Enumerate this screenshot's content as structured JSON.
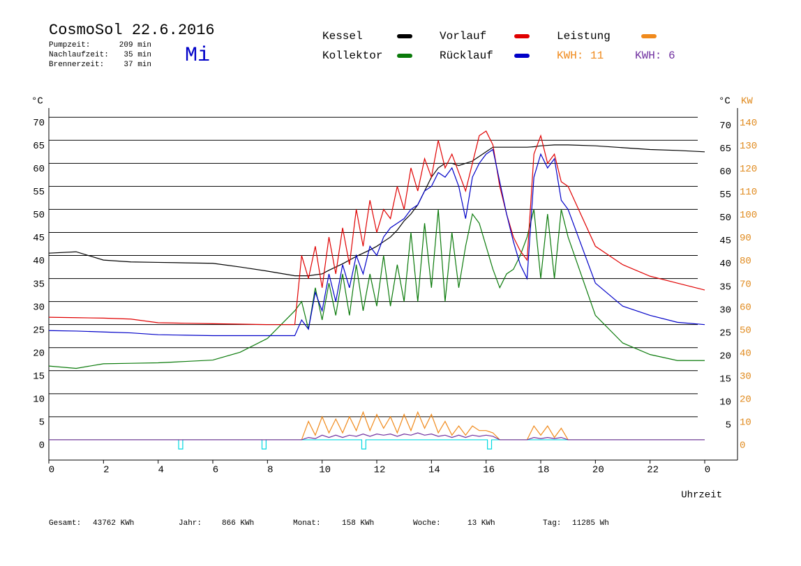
{
  "chart_data": {
    "type": "line",
    "title": "CosmoSol 22.6.2016",
    "weekday": "Mi",
    "stats": [
      {
        "label": "Pumpzeit:",
        "value": "209 min"
      },
      {
        "label": "Nachlaufzeit:",
        "value": "35 min"
      },
      {
        "label": "Brennerzeit:",
        "value": "37 min"
      }
    ],
    "ylabel": "°C",
    "y2label_left": "°C",
    "y2label": "KW",
    "xlabel": "Uhrzeit",
    "xlim": [
      0,
      25.2
    ],
    "xticks": [
      0,
      2,
      4,
      6,
      8,
      10,
      12,
      14,
      16,
      18,
      20,
      22,
      {
        "value": 24,
        "label": "0"
      }
    ],
    "ylim": [
      -4.4,
      72
    ],
    "yticks": [
      0,
      5,
      10,
      15,
      20,
      25,
      30,
      35,
      40,
      45,
      50,
      55,
      60,
      65,
      70
    ],
    "right_yticks": [
      5,
      10,
      15,
      20,
      25,
      30,
      35,
      40,
      45,
      50,
      55,
      60,
      65,
      70
    ],
    "y2lim": [
      -8.8,
      144
    ],
    "y2ticks": [
      0,
      10,
      20,
      30,
      40,
      50,
      60,
      70,
      80,
      90,
      100,
      110,
      120,
      130,
      140
    ],
    "y2color": "#e08a1e",
    "grid": true,
    "x": [
      0,
      1,
      2,
      3,
      4,
      5,
      6,
      7,
      8,
      9,
      9.25,
      9.5,
      9.75,
      10,
      10.25,
      10.5,
      10.75,
      11,
      11.25,
      11.5,
      11.75,
      12,
      12.25,
      12.5,
      12.75,
      13,
      13.25,
      13.5,
      13.75,
      14,
      14.25,
      14.5,
      14.75,
      15,
      15.25,
      15.5,
      15.75,
      16,
      16.25,
      16.5,
      16.75,
      17,
      17.25,
      17.5,
      17.75,
      18,
      18.25,
      18.5,
      18.75,
      19,
      20,
      21,
      22,
      23,
      24
    ],
    "series": [
      {
        "name": "Kessel",
        "color": "#000000",
        "values": [
          40.5,
          40.8,
          39.0,
          38.6,
          38.5,
          38.4,
          38.3,
          37.5,
          36.6,
          35.6,
          35.6,
          35.6,
          35.8,
          36,
          36.8,
          37.5,
          38.2,
          39,
          39.8,
          40.5,
          41.2,
          42,
          43,
          44,
          45.5,
          47.5,
          49,
          51,
          54,
          57,
          59,
          60,
          60,
          59.5,
          60,
          60.5,
          61.5,
          62.5,
          63.5,
          63.5,
          63.5,
          63.5,
          63.5,
          63.5,
          63.6,
          63.8,
          63.9,
          64,
          64,
          64,
          63.8,
          63.4,
          63,
          62.8,
          62.5
        ]
      },
      {
        "name": "Kollektor",
        "color": "#0a7a0a",
        "values": [
          16,
          15.5,
          16.5,
          16.6,
          16.7,
          17,
          17.3,
          19,
          22,
          28,
          30,
          24,
          33,
          26,
          34,
          27,
          36,
          27,
          38,
          28,
          36,
          29,
          40,
          29,
          38,
          30,
          45,
          30,
          47,
          33,
          50,
          30,
          45,
          33,
          42,
          49,
          47,
          42,
          37,
          33,
          36,
          37,
          40,
          44,
          50,
          35,
          49,
          35,
          50,
          44,
          27,
          21,
          18.5,
          17.2,
          17.2
        ]
      },
      {
        "name": "Vorlauf",
        "color": "#e00000",
        "values": [
          26.6,
          26.5,
          26.4,
          26.2,
          25.4,
          25.3,
          25.2,
          25.1,
          25.0,
          25.0,
          40,
          35,
          42,
          33,
          44,
          36,
          46,
          38,
          50,
          42,
          52,
          45,
          50,
          48,
          55,
          50,
          59,
          54,
          61,
          57,
          65,
          59,
          62,
          58,
          54,
          60,
          66,
          67,
          64,
          55,
          49,
          44,
          41,
          39,
          62,
          66,
          60,
          62,
          56,
          55,
          42,
          38,
          35.5,
          34,
          32.5
        ]
      },
      {
        "name": "Rücklauf",
        "color": "#0000c8",
        "values": [
          23.7,
          23.6,
          23.4,
          23.2,
          22.8,
          22.7,
          22.6,
          22.6,
          22.6,
          22.6,
          26,
          24,
          32,
          28,
          36,
          30,
          38,
          33,
          40,
          36,
          42,
          40,
          44,
          46,
          47,
          48,
          50,
          51,
          54,
          55,
          58,
          57,
          59,
          55,
          48,
          57,
          60,
          62,
          63,
          56,
          49,
          43,
          38,
          35,
          57,
          62,
          59,
          61,
          52,
          50,
          34,
          29,
          27,
          25.5,
          25
        ]
      },
      {
        "name": "Leistung",
        "color": "#f08a1c",
        "axis": "y2",
        "values": [
          0,
          0,
          0,
          0,
          0,
          0,
          0,
          0,
          0,
          0,
          0,
          8,
          2,
          10,
          3,
          9,
          3,
          10,
          4,
          12,
          4,
          11,
          5,
          10,
          3,
          11,
          4,
          12,
          5,
          11,
          3,
          8,
          2,
          6,
          2,
          6,
          4,
          4,
          3,
          0,
          0,
          0,
          0,
          0,
          6,
          2,
          6,
          1,
          5,
          0,
          0,
          0,
          0,
          0,
          0
        ]
      },
      {
        "color": "#7030a0",
        "axis": "y2",
        "values": [
          0,
          0,
          0,
          0,
          0,
          0,
          0,
          0,
          0,
          0,
          0,
          1,
          0.5,
          2,
          1,
          2,
          1,
          2,
          1.5,
          2.5,
          1.5,
          2.5,
          2,
          2.5,
          1.5,
          2.5,
          2,
          3,
          2,
          2.5,
          1.5,
          2,
          1,
          2,
          1,
          2,
          1.5,
          2,
          1.5,
          0,
          0,
          0,
          0,
          0,
          1,
          0.5,
          1,
          0.5,
          1,
          0,
          0,
          0,
          0,
          0,
          0
        ]
      }
    ],
    "pump": {
      "color": "#00d8e0",
      "x": [
        0,
        4.75,
        4.75,
        4.9,
        4.9,
        7.8,
        7.8,
        7.95,
        7.95,
        11.45,
        11.45,
        11.6,
        11.6,
        16.05,
        16.05,
        16.2,
        16.2,
        24
      ],
      "values": [
        0,
        0,
        -2,
        -2,
        0,
        0,
        -2,
        -2,
        0,
        0,
        -2,
        -2,
        0,
        0,
        -2,
        -2,
        0,
        0
      ]
    },
    "energy": [
      {
        "label": "KWH: 11",
        "color": "#f08a1c"
      },
      {
        "label": "KWH: 6",
        "color": "#7030a0"
      }
    ],
    "totals": [
      {
        "label": "Gesamt:",
        "value": "43762 KWh"
      },
      {
        "label": "Jahr:",
        "value": "866 KWh"
      },
      {
        "label": "Monat:",
        "value": "158 KWh"
      },
      {
        "label": "Woche:",
        "value": "13 KWh"
      },
      {
        "label": "Tag:",
        "value": "11285 Wh"
      }
    ]
  }
}
